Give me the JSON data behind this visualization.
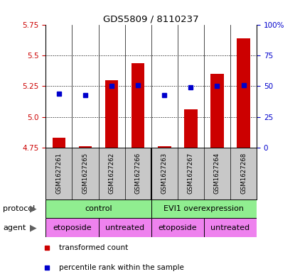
{
  "title": "GDS5809 / 8110237",
  "samples": [
    "GSM1627261",
    "GSM1627265",
    "GSM1627262",
    "GSM1627266",
    "GSM1627263",
    "GSM1627267",
    "GSM1627264",
    "GSM1627268"
  ],
  "red_values": [
    4.83,
    4.76,
    5.3,
    5.44,
    4.76,
    5.06,
    5.35,
    5.64
  ],
  "blue_values": [
    5.19,
    5.18,
    5.25,
    5.26,
    5.18,
    5.24,
    5.25,
    5.26
  ],
  "ylim_left": [
    4.75,
    5.75
  ],
  "ylim_right": [
    0,
    100
  ],
  "yticks_left": [
    4.75,
    5.0,
    5.25,
    5.5,
    5.75
  ],
  "yticks_right": [
    0,
    25,
    50,
    75,
    100
  ],
  "yticks_right_labels": [
    "0",
    "25",
    "50",
    "75",
    "100%"
  ],
  "hlines": [
    5.0,
    5.25,
    5.5
  ],
  "bar_bottom": 4.75,
  "bar_color": "#cc0000",
  "dot_color": "#0000cc",
  "legend_red": "transformed count",
  "legend_blue": "percentile rank within the sample",
  "xlabel_protocol": "protocol",
  "xlabel_agent": "agent",
  "tick_color_left": "#cc0000",
  "tick_color_right": "#0000cc",
  "sample_bg": "#c8c8c8",
  "plot_bg": "#ffffff",
  "protocol_color": "#90ee90",
  "agent_color_etoposide": "#ee82ee",
  "agent_color_untreated": "#ee82ee",
  "proto_labels": [
    "control",
    "EVI1 overexpression"
  ],
  "proto_ranges": [
    [
      0,
      3
    ],
    [
      4,
      7
    ]
  ],
  "agent_labels": [
    "etoposide",
    "untreated",
    "etoposide",
    "untreated"
  ],
  "agent_ranges": [
    [
      0,
      1
    ],
    [
      2,
      3
    ],
    [
      4,
      5
    ],
    [
      6,
      7
    ]
  ]
}
